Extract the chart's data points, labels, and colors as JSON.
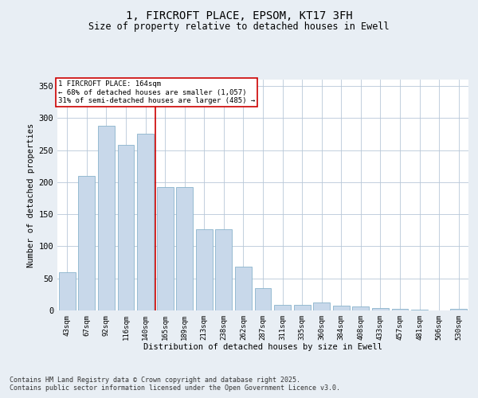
{
  "title_line1": "1, FIRCROFT PLACE, EPSOM, KT17 3FH",
  "title_line2": "Size of property relative to detached houses in Ewell",
  "xlabel": "Distribution of detached houses by size in Ewell",
  "ylabel": "Number of detached properties",
  "categories": [
    "43sqm",
    "67sqm",
    "92sqm",
    "116sqm",
    "140sqm",
    "165sqm",
    "189sqm",
    "213sqm",
    "238sqm",
    "262sqm",
    "287sqm",
    "311sqm",
    "335sqm",
    "360sqm",
    "384sqm",
    "408sqm",
    "433sqm",
    "457sqm",
    "481sqm",
    "506sqm",
    "530sqm"
  ],
  "values": [
    60,
    210,
    288,
    258,
    275,
    193,
    193,
    127,
    127,
    68,
    35,
    9,
    9,
    12,
    7,
    6,
    4,
    3,
    1,
    0,
    3
  ],
  "bar_color": "#c8d8ea",
  "bar_edge_color": "#8ab4cc",
  "marker_index": 5,
  "marker_label": "1 FIRCROFT PLACE: 164sqm",
  "annotation_line1": "← 68% of detached houses are smaller (1,057)",
  "annotation_line2": "31% of semi-detached houses are larger (485) →",
  "marker_color": "#cc0000",
  "annotation_box_color": "#ffffff",
  "annotation_box_edge_color": "#cc0000",
  "ylim": [
    0,
    360
  ],
  "yticks": [
    0,
    50,
    100,
    150,
    200,
    250,
    300,
    350
  ],
  "footer_line1": "Contains HM Land Registry data © Crown copyright and database right 2025.",
  "footer_line2": "Contains public sector information licensed under the Open Government Licence v3.0.",
  "background_color": "#e8eef4",
  "plot_background_color": "#ffffff",
  "grid_color": "#b8c8d8"
}
